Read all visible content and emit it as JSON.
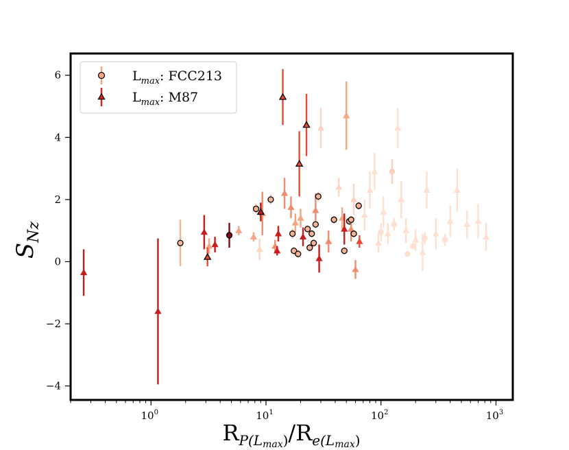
{
  "chart_data": {
    "type": "scatter",
    "title": "",
    "xscale": "log",
    "xlim": [
      0.2,
      1400
    ],
    "ylim": [
      -4.45,
      6.7
    ],
    "grid": false,
    "legend_position": "top-left",
    "x_ticks": [
      {
        "value": 1,
        "base": "10",
        "exp": "0"
      },
      {
        "value": 10,
        "base": "10",
        "exp": "1"
      },
      {
        "value": 100,
        "base": "10",
        "exp": "2"
      },
      {
        "value": 1000,
        "base": "10",
        "exp": "3"
      }
    ],
    "y_ticks": [
      {
        "value": -4,
        "label": "−4"
      },
      {
        "value": -2,
        "label": "−2"
      },
      {
        "value": 0,
        "label": "0"
      },
      {
        "value": 2,
        "label": "2"
      },
      {
        "value": 4,
        "label": "4"
      },
      {
        "value": 6,
        "label": "6"
      }
    ],
    "xlabel": {
      "base1": "R",
      "sub1": "P(L",
      "subsub1": "max",
      "close1": ")",
      "slash": "/",
      "base2": "R",
      "sub2": "e(L",
      "subsub2": "max",
      "close2": ")"
    },
    "ylabel": {
      "base": "S",
      "sub": "Nz"
    },
    "legend": [
      {
        "marker": "circle",
        "prefix": "L",
        "sub": "max",
        "text": ": FCC213",
        "color": "#f4a582"
      },
      {
        "marker": "triangle",
        "prefix": "L",
        "sub": "max",
        "text": ": M87",
        "color": "#d6281f"
      }
    ],
    "series": [
      {
        "name": "L_max: FCC213",
        "marker": "circle",
        "points": [
          {
            "x": 1.8,
            "y": 0.6,
            "err": 0.75,
            "color": "#f6b497",
            "outlined": true
          },
          {
            "x": 4.8,
            "y": 0.85,
            "err": 0.4,
            "color": "#7f0a14",
            "outlined": true
          },
          {
            "x": 8.2,
            "y": 1.7,
            "err": 0.15,
            "color": "#f6b497",
            "outlined": true
          },
          {
            "x": 11.0,
            "y": 2.0,
            "err": 0.15,
            "color": "#f6b497",
            "outlined": true
          },
          {
            "x": 17.0,
            "y": 0.9,
            "err": 0.15,
            "color": "#f6b497",
            "outlined": true
          },
          {
            "x": 17.5,
            "y": 0.35,
            "err": 0.12,
            "color": "#f6b497",
            "outlined": true
          },
          {
            "x": 19.0,
            "y": 0.25,
            "err": 0.12,
            "color": "#f6b497",
            "outlined": true
          },
          {
            "x": 23.0,
            "y": 1.05,
            "err": 0.12,
            "color": "#f6b497",
            "outlined": true
          },
          {
            "x": 24.0,
            "y": 0.45,
            "err": 0.12,
            "color": "#f6b497",
            "outlined": true
          },
          {
            "x": 25.0,
            "y": 0.9,
            "err": 0.12,
            "color": "#f6b497",
            "outlined": true
          },
          {
            "x": 26.0,
            "y": 0.6,
            "err": 0.12,
            "color": "#f6b497",
            "outlined": true
          },
          {
            "x": 27.0,
            "y": 1.2,
            "err": 0.12,
            "color": "#f6b497",
            "outlined": true
          },
          {
            "x": 28.5,
            "y": 2.1,
            "err": 0.15,
            "color": "#f6b497",
            "outlined": true
          },
          {
            "x": 39.0,
            "y": 1.35,
            "err": 0.12,
            "color": "#f6b497",
            "outlined": true
          },
          {
            "x": 48.0,
            "y": 0.35,
            "err": 0.12,
            "color": "#f6b497",
            "outlined": true
          },
          {
            "x": 53.0,
            "y": 1.3,
            "err": 0.12,
            "color": "#f6b497",
            "outlined": true
          },
          {
            "x": 55.0,
            "y": 1.35,
            "err": 0.12,
            "color": "#f6b497",
            "outlined": true
          },
          {
            "x": 58.0,
            "y": 0.9,
            "err": 0.12,
            "color": "#f6b497",
            "outlined": true
          },
          {
            "x": 64.0,
            "y": 1.8,
            "err": 0.12,
            "color": "#f6b497",
            "outlined": true
          },
          {
            "x": 170,
            "y": 0.25,
            "err": 0.1,
            "color": "#fde0d0",
            "outlined": false
          },
          {
            "x": 190,
            "y": 0.5,
            "err": 0.1,
            "color": "#fde0d0",
            "outlined": false
          },
          {
            "x": 130,
            "y": 1.2,
            "err": 0.2,
            "color": "#fde0d0",
            "outlined": false
          },
          {
            "x": 240,
            "y": 0.75,
            "err": 0.2,
            "color": "#fde0d0",
            "outlined": false
          },
          {
            "x": 360,
            "y": 0.7,
            "err": 0.2,
            "color": "#fde0d0",
            "outlined": false
          },
          {
            "x": 125,
            "y": 2.9,
            "err": 0.4,
            "color": "#fbd0bb",
            "outlined": false
          },
          {
            "x": 100,
            "y": 0.95,
            "err": 0.3,
            "color": "#fde0d0",
            "outlined": false
          }
        ]
      },
      {
        "name": "L_max: M87",
        "marker": "triangle",
        "points": [
          {
            "x": 0.26,
            "y": -0.35,
            "err": 0.75,
            "color": "#c81d1f",
            "outlined": false
          },
          {
            "x": 1.15,
            "y": -1.6,
            "err": 2.35,
            "color": "#c81d1f",
            "outlined": false
          },
          {
            "x": 2.9,
            "y": 0.95,
            "err": 0.55,
            "color": "#c81d1f",
            "outlined": false
          },
          {
            "x": 3.1,
            "y": 0.15,
            "err": 0.3,
            "color": "#e84a33",
            "outlined": true
          },
          {
            "x": 3.2,
            "y": 0.5,
            "err": 0.25,
            "color": "#f4a582",
            "outlined": false
          },
          {
            "x": 3.6,
            "y": 0.55,
            "err": 0.25,
            "color": "#c81d1f",
            "outlined": false
          },
          {
            "x": 5.8,
            "y": 1.0,
            "err": 0.15,
            "color": "#f6a588",
            "outlined": false
          },
          {
            "x": 7.8,
            "y": 0.8,
            "err": 0.15,
            "color": "#f6a588",
            "outlined": false
          },
          {
            "x": 8.8,
            "y": 0.4,
            "err": 0.35,
            "color": "#fcd5c3",
            "outlined": false
          },
          {
            "x": 9.0,
            "y": 1.6,
            "err": 0.3,
            "color": "#c81d1f",
            "outlined": true
          },
          {
            "x": 9.3,
            "y": 1.55,
            "err": 0.7,
            "color": "#f08c6f",
            "outlined": false
          },
          {
            "x": 12.0,
            "y": 0.5,
            "err": 0.2,
            "color": "#f08c6f",
            "outlined": false
          },
          {
            "x": 12.5,
            "y": 0.35,
            "err": 0.15,
            "color": "#c81d1f",
            "outlined": false
          },
          {
            "x": 12.8,
            "y": 0.9,
            "err": 0.25,
            "color": "#c81d1f",
            "outlined": false
          },
          {
            "x": 14.0,
            "y": 5.3,
            "err": 0.9,
            "color": "#e84a33",
            "outlined": true
          },
          {
            "x": 14.5,
            "y": 2.2,
            "err": 0.5,
            "color": "#f08c6f",
            "outlined": false
          },
          {
            "x": 16.5,
            "y": 1.75,
            "err": 0.35,
            "color": "#f08c6f",
            "outlined": false
          },
          {
            "x": 18.0,
            "y": 1.25,
            "err": 0.3,
            "color": "#f4a582",
            "outlined": false
          },
          {
            "x": 19.5,
            "y": 3.15,
            "err": 1.05,
            "color": "#e84a33",
            "outlined": true
          },
          {
            "x": 20.0,
            "y": 1.4,
            "err": 0.3,
            "color": "#f4a582",
            "outlined": false
          },
          {
            "x": 21.0,
            "y": 0.8,
            "err": 0.3,
            "color": "#c81d1f",
            "outlined": false
          },
          {
            "x": 22.5,
            "y": 4.4,
            "err": 1.0,
            "color": "#e84a33",
            "outlined": true
          },
          {
            "x": 27.0,
            "y": 1.65,
            "err": 0.55,
            "color": "#f08c6f",
            "outlined": false
          },
          {
            "x": 29.0,
            "y": 0.1,
            "err": 0.45,
            "color": "#c81d1f",
            "outlined": false
          },
          {
            "x": 30.0,
            "y": 4.3,
            "err": 0.65,
            "color": "#fcd5c3",
            "outlined": false
          },
          {
            "x": 35.0,
            "y": 0.65,
            "err": 0.35,
            "color": "#f08c6f",
            "outlined": false
          },
          {
            "x": 43.0,
            "y": 2.4,
            "err": 0.3,
            "color": "#fcd5c3",
            "outlined": false
          },
          {
            "x": 46.0,
            "y": 1.4,
            "err": 0.35,
            "color": "#f4a582",
            "outlined": false
          },
          {
            "x": 48.0,
            "y": 1.05,
            "err": 0.5,
            "color": "#c81d1f",
            "outlined": false
          },
          {
            "x": 50.0,
            "y": 4.7,
            "err": 1.1,
            "color": "#f4a582",
            "outlined": false
          },
          {
            "x": 55.0,
            "y": 1.05,
            "err": 0.4,
            "color": "#f08c6f",
            "outlined": false
          },
          {
            "x": 58.0,
            "y": 2.0,
            "err": 0.5,
            "color": "#fcd5c3",
            "outlined": false
          },
          {
            "x": 60.0,
            "y": -0.25,
            "err": 0.3,
            "color": "#f08c6f",
            "outlined": false
          },
          {
            "x": 65.0,
            "y": 0.65,
            "err": 0.2,
            "color": "#e84a33",
            "outlined": false
          },
          {
            "x": 72.0,
            "y": 1.5,
            "err": 0.5,
            "color": "#fde0d0",
            "outlined": false
          },
          {
            "x": 80.0,
            "y": 2.3,
            "err": 0.6,
            "color": "#fde0d0",
            "outlined": false
          },
          {
            "x": 88.0,
            "y": 2.9,
            "err": 0.6,
            "color": "#fde0d0",
            "outlined": false
          },
          {
            "x": 95.0,
            "y": 0.6,
            "err": 0.3,
            "color": "#fde0d0",
            "outlined": false
          },
          {
            "x": 105.0,
            "y": 1.6,
            "err": 0.5,
            "color": "#fde0d0",
            "outlined": false
          },
          {
            "x": 115.0,
            "y": 0.9,
            "err": 0.35,
            "color": "#fde0d0",
            "outlined": false
          },
          {
            "x": 140.0,
            "y": 4.3,
            "err": 0.65,
            "color": "#fde0d0",
            "outlined": false
          },
          {
            "x": 150.0,
            "y": 2.0,
            "err": 0.6,
            "color": "#fde0d0",
            "outlined": false
          },
          {
            "x": 165.0,
            "y": 1.0,
            "err": 0.4,
            "color": "#fde0d0",
            "outlined": false
          },
          {
            "x": 200.0,
            "y": 0.7,
            "err": 0.35,
            "color": "#fde0d0",
            "outlined": false
          },
          {
            "x": 230.0,
            "y": 0.3,
            "err": 0.6,
            "color": "#fde0d0",
            "outlined": false
          },
          {
            "x": 250.0,
            "y": 2.3,
            "err": 0.6,
            "color": "#fde0d0",
            "outlined": false
          },
          {
            "x": 300.0,
            "y": 0.9,
            "err": 0.5,
            "color": "#fde0d0",
            "outlined": false
          },
          {
            "x": 400.0,
            "y": 1.3,
            "err": 0.5,
            "color": "#fde0d0",
            "outlined": false
          },
          {
            "x": 460.0,
            "y": 2.3,
            "err": 0.7,
            "color": "#fde0d0",
            "outlined": false
          },
          {
            "x": 560.0,
            "y": 1.2,
            "err": 0.45,
            "color": "#fde0d0",
            "outlined": false
          },
          {
            "x": 700.0,
            "y": 1.3,
            "err": 0.55,
            "color": "#fde0d0",
            "outlined": false
          },
          {
            "x": 820.0,
            "y": 0.8,
            "err": 0.45,
            "color": "#fde0d0",
            "outlined": false
          }
        ]
      }
    ]
  }
}
